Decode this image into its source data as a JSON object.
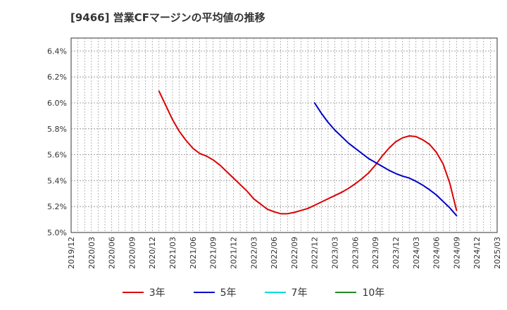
{
  "chart_data": {
    "type": "line",
    "title": "[9466]  営業CFマージンの平均値の推移",
    "xlabel": "",
    "ylabel": "",
    "ylim": [
      5.0,
      6.5
    ],
    "yticks": [
      "5.0%",
      "5.2%",
      "5.4%",
      "5.6%",
      "5.8%",
      "6.0%",
      "6.2%",
      "6.4%"
    ],
    "ytick_values": [
      5.0,
      5.2,
      5.4,
      5.6,
      5.8,
      6.0,
      6.2,
      6.4
    ],
    "xticks": [
      "2019/12",
      "2020/03",
      "2020/06",
      "2020/09",
      "2020/12",
      "2021/03",
      "2021/06",
      "2021/09",
      "2021/12",
      "2022/03",
      "2022/06",
      "2022/09",
      "2022/12",
      "2023/03",
      "2023/06",
      "2023/09",
      "2023/12",
      "2024/03",
      "2024/06",
      "2024/09",
      "2024/12",
      "2025/03"
    ],
    "grid": true,
    "legend_position": "bottom",
    "series": [
      {
        "name": "3年",
        "color": "#dd0000",
        "x": [
          "2021/01",
          "2021/02",
          "2021/03",
          "2021/04",
          "2021/05",
          "2021/06",
          "2021/07",
          "2021/08",
          "2021/09",
          "2021/10",
          "2021/11",
          "2021/12",
          "2022/01",
          "2022/02",
          "2022/03",
          "2022/04",
          "2022/05",
          "2022/06",
          "2022/07",
          "2022/08",
          "2022/09",
          "2022/10",
          "2022/11",
          "2022/12",
          "2023/01",
          "2023/02",
          "2023/03",
          "2023/04",
          "2023/05",
          "2023/06",
          "2023/07",
          "2023/08",
          "2023/09",
          "2023/10",
          "2023/11",
          "2023/12",
          "2024/01",
          "2024/02",
          "2024/03",
          "2024/04",
          "2024/05",
          "2024/06",
          "2024/07",
          "2024/08",
          "2024/09"
        ],
        "values": [
          6.09,
          5.98,
          5.87,
          5.78,
          5.71,
          5.65,
          5.61,
          5.59,
          5.56,
          5.52,
          5.47,
          5.42,
          5.37,
          5.32,
          5.26,
          5.22,
          5.18,
          5.16,
          5.145,
          5.145,
          5.155,
          5.17,
          5.185,
          5.21,
          5.235,
          5.26,
          5.285,
          5.31,
          5.34,
          5.375,
          5.415,
          5.46,
          5.52,
          5.59,
          5.65,
          5.7,
          5.73,
          5.745,
          5.74,
          5.715,
          5.68,
          5.62,
          5.53,
          5.38,
          5.17
        ]
      },
      {
        "name": "5年",
        "color": "#0000cc",
        "x": [
          "2022/12",
          "2023/01",
          "2023/02",
          "2023/03",
          "2023/04",
          "2023/05",
          "2023/06",
          "2023/07",
          "2023/08",
          "2023/09",
          "2023/10",
          "2023/11",
          "2023/12",
          "2024/01",
          "2024/02",
          "2024/03",
          "2024/04",
          "2024/05",
          "2024/06",
          "2024/07",
          "2024/08",
          "2024/09"
        ],
        "values": [
          6.0,
          5.92,
          5.85,
          5.79,
          5.74,
          5.69,
          5.65,
          5.61,
          5.57,
          5.54,
          5.51,
          5.48,
          5.455,
          5.435,
          5.42,
          5.395,
          5.365,
          5.33,
          5.29,
          5.24,
          5.19,
          5.13
        ]
      },
      {
        "name": "7年",
        "color": "#00dddd",
        "x": [],
        "values": []
      },
      {
        "name": "10年",
        "color": "#228822",
        "x": [],
        "values": []
      }
    ]
  }
}
